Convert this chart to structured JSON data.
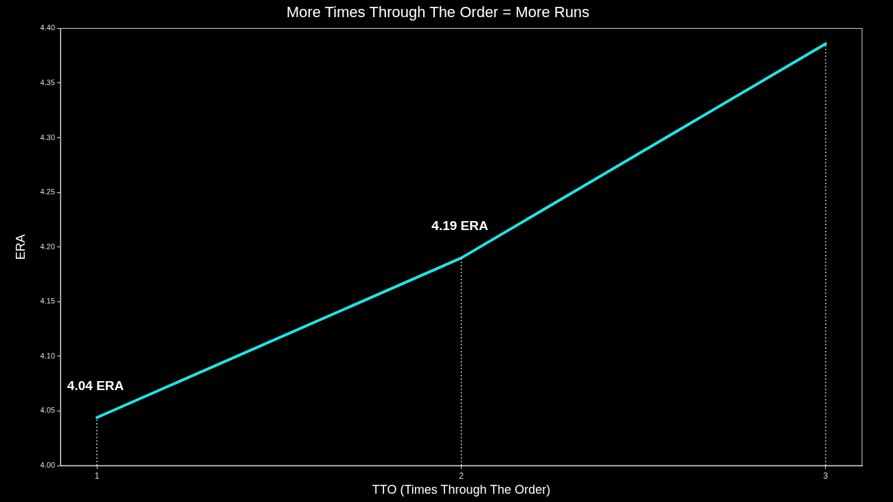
{
  "chart_data": {
    "type": "line",
    "title": "More Times Through The Order = More Runs",
    "xlabel": "TTO (Times Through The Order)",
    "ylabel": "ERA",
    "x": [
      1,
      2,
      3
    ],
    "series": [
      {
        "color": "#1ee6e6",
        "values": [
          4.044,
          4.19,
          4.386
        ]
      }
    ],
    "xlim": [
      0.9,
      3.1
    ],
    "xticks": [
      1,
      2,
      3
    ],
    "ylim": [
      4.0,
      4.4
    ],
    "yticks": [
      {
        "value": 4.0,
        "label": "4.00"
      },
      4.05,
      {
        "value": 4.1,
        "label": "4.10"
      },
      4.15,
      {
        "value": 4.2,
        "label": "4.20"
      },
      4.25,
      {
        "value": 4.3,
        "label": "4.30"
      },
      4.35,
      {
        "value": 4.4,
        "label": "4.40"
      }
    ],
    "annotations": [
      {
        "text": "4.04 ERA",
        "x": 1,
        "y": 4.044
      },
      {
        "text": "4.19 ERA",
        "x": 2,
        "y": 4.19
      }
    ],
    "ref_lines": [
      {
        "axis": "x",
        "value": 1,
        "color": "#ffffff",
        "line_style": "dotted"
      },
      {
        "axis": "x",
        "value": 2,
        "color": "#ffffff",
        "line_style": "dotted"
      },
      {
        "axis": "x",
        "value": 3,
        "color": "#ffffff",
        "line_style": "dotted"
      }
    ],
    "grid": false,
    "legend": false,
    "marker": "none",
    "line_style": "solid"
  }
}
